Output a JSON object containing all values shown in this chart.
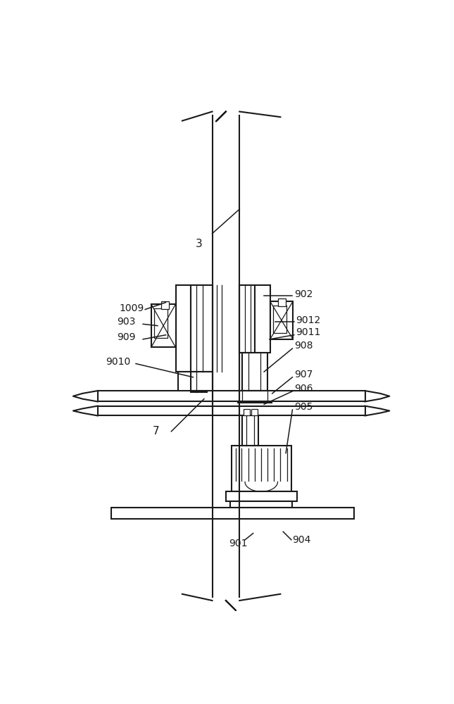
{
  "bg_color": "#ffffff",
  "lc": "#1a1a1a",
  "figsize": [
    6.45,
    10.0
  ],
  "dpi": 100,
  "lw_main": 1.5,
  "lw_thin": 0.9,
  "fs": 10
}
